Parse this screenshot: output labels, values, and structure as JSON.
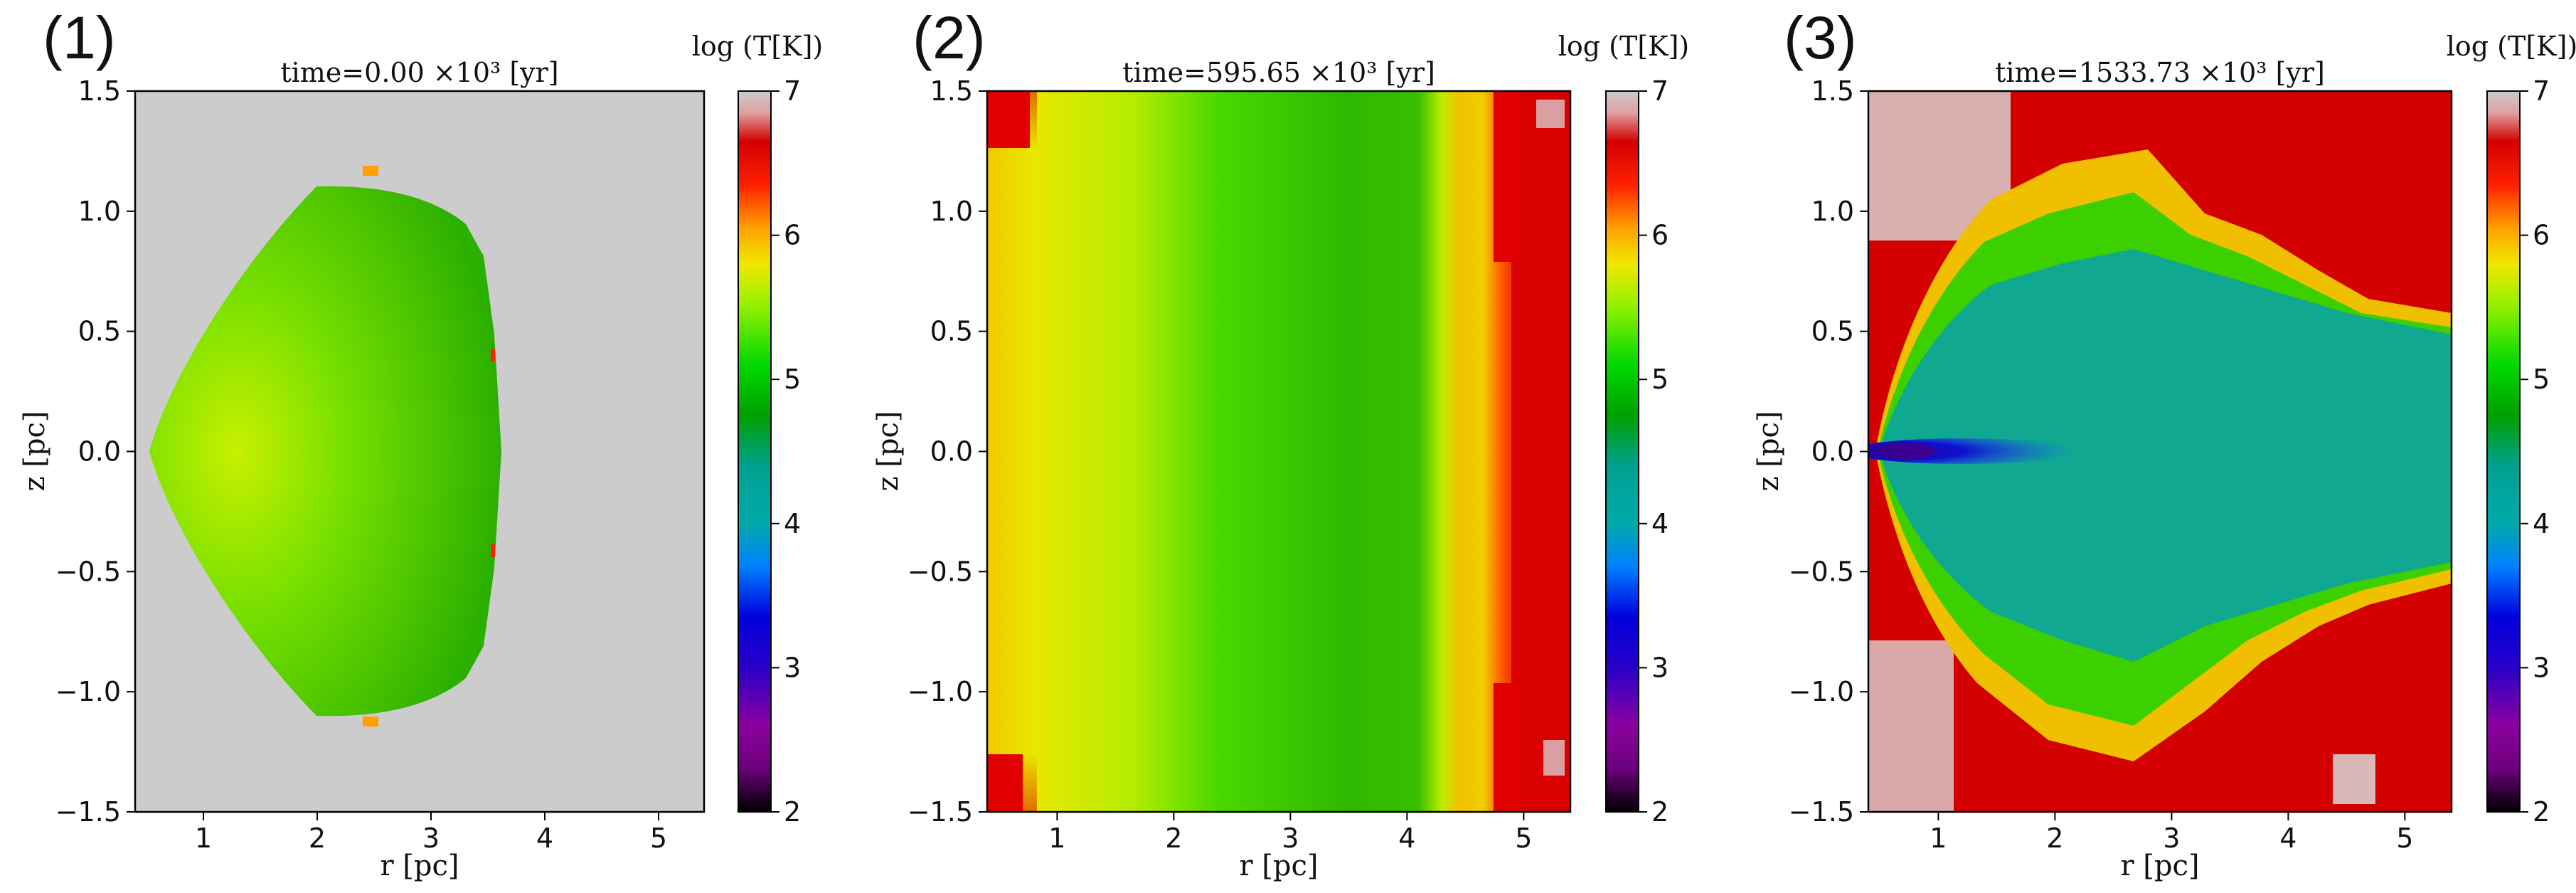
{
  "chart_data": [
    {
      "type": "heatmap",
      "panel_label": "(1)",
      "title": "time=0.00 ×10³  [yr]",
      "time_value": 0.0,
      "xlabel": "r [pc]",
      "ylabel": "z [pc]",
      "xlim": [
        0.4,
        5.4
      ],
      "ylim": [
        -1.5,
        1.5
      ],
      "xticks": [
        "1",
        "2",
        "3",
        "4",
        "5"
      ],
      "yticks": [
        "1.5",
        "1.0",
        "0.5",
        "0.0",
        "−0.5",
        "−1.0",
        "−1.5"
      ],
      "colorbar": {
        "label": "log (T[K])",
        "range": [
          2,
          7
        ],
        "ticks": [
          "7",
          "6",
          "5",
          "4",
          "3",
          "2"
        ]
      },
      "background_color": "#cccccc",
      "regions": [
        {
          "shape": "shell",
          "r_apex": 0.5,
          "r_back": 3.68,
          "z_half_height": 1.13,
          "log_T_inner": 5.3,
          "log_T_outer": 4.6
        }
      ]
    },
    {
      "type": "heatmap",
      "panel_label": "(2)",
      "title": "time=595.65  ×10³  [yr]",
      "time_value": 595.65,
      "xlabel": "r [pc]",
      "ylabel": "z [pc]",
      "xlim": [
        0.4,
        5.4
      ],
      "ylim": [
        -1.5,
        1.5
      ],
      "xticks": [
        "1",
        "2",
        "3",
        "4",
        "5"
      ],
      "yticks": [
        "1.5",
        "1.0",
        "0.5",
        "0.0",
        "−0.5",
        "−1.0",
        "−1.5"
      ],
      "colorbar": {
        "label": "log (T[K])",
        "range": [
          2,
          7
        ],
        "ticks": [
          "7",
          "6",
          "5",
          "4",
          "3",
          "2"
        ]
      },
      "regions": [
        {
          "r_range": [
            0.4,
            2.0
          ],
          "log_T": 5.3
        },
        {
          "r_range": [
            2.0,
            4.4
          ],
          "log_T": 4.7
        },
        {
          "r_range": [
            4.4,
            4.9
          ],
          "log_T": 5.6
        },
        {
          "r_range": [
            4.9,
            5.4
          ],
          "log_T": 6.8
        }
      ]
    },
    {
      "type": "heatmap",
      "panel_label": "(3)",
      "title": "time=1533.73  ×10³  [yr]",
      "time_value": 1533.73,
      "xlabel": "r [pc]",
      "ylabel": "z [pc]",
      "xlim": [
        0.4,
        5.4
      ],
      "ylim": [
        -1.5,
        1.5
      ],
      "xticks": [
        "1",
        "2",
        "3",
        "4",
        "5"
      ],
      "yticks": [
        "1.5",
        "1.0",
        "0.5",
        "0.0",
        "−0.5",
        "−1.0",
        "−1.5"
      ],
      "colorbar": {
        "label": "log (T[K])",
        "range": [
          2,
          7
        ],
        "ticks": [
          "7",
          "6",
          "5",
          "4",
          "3",
          "2"
        ]
      },
      "regions": [
        {
          "shape": "ambient",
          "log_T": 6.8
        },
        {
          "shape": "hot-corners",
          "log_T": 7.0
        },
        {
          "shape": "bubble-edge",
          "log_T": 5.5
        },
        {
          "shape": "bubble",
          "r_range": [
            0.4,
            5.4
          ],
          "z_half_height": 0.85,
          "log_T": 4.1
        },
        {
          "shape": "jet",
          "r_range": [
            0.45,
            2.1
          ],
          "z_half_height": 0.05,
          "log_T": 3.0
        }
      ]
    }
  ]
}
